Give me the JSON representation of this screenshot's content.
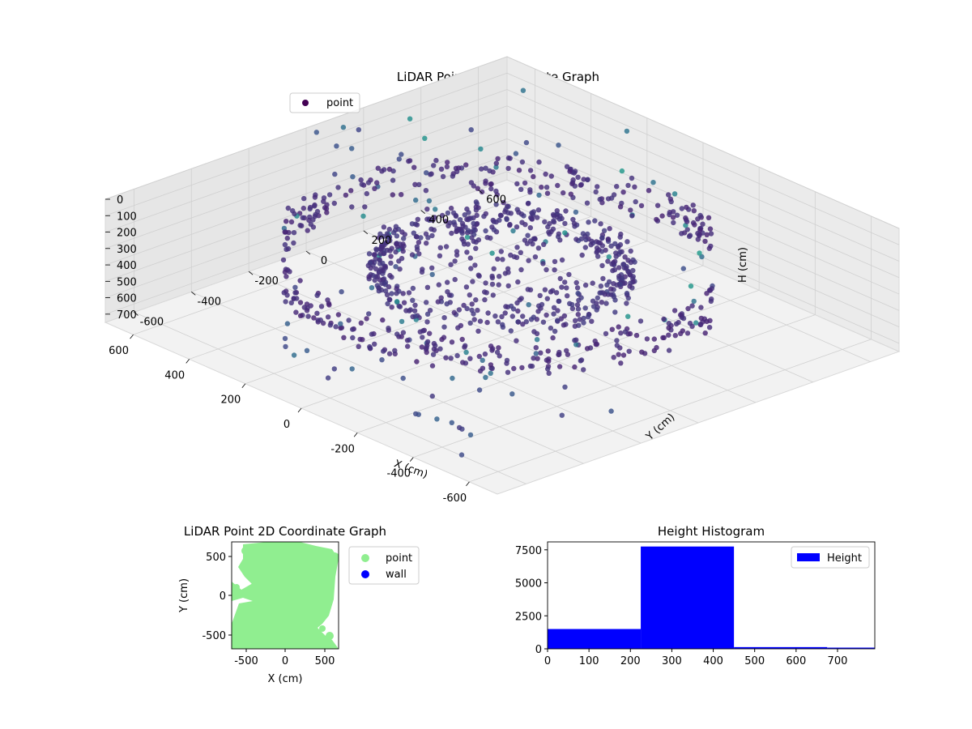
{
  "figure": {
    "background": "#ffffff"
  },
  "chart_data": [
    {
      "type": "scatter",
      "projection": "3d",
      "title": "LiDAR Point 3D Coordinate Graph",
      "xlabel": "X (cm)",
      "ylabel": "Y (cm)",
      "zlabel": "H (cm)",
      "xlim": [
        -700,
        700
      ],
      "ylim": [
        -700,
        700
      ],
      "zlim": [
        0,
        750
      ],
      "z_inverted": true,
      "xticks": [
        "-600",
        "-400",
        "-200",
        "0",
        "200",
        "400",
        "600"
      ],
      "yticks": [
        "-600",
        "-400",
        "-200",
        "0",
        "200",
        "400",
        "600"
      ],
      "zticks": [
        "0",
        "100",
        "200",
        "300",
        "400",
        "500",
        "600",
        "700"
      ],
      "colormap": "viridis",
      "legend": {
        "location": "upper-left",
        "entries": [
          {
            "label": "point",
            "color": "#440154"
          }
        ]
      },
      "structure": [
        {
          "shape": "cylinder-wall",
          "radius": 560,
          "h_range": [
            210,
            420
          ]
        },
        {
          "shape": "cylinder-wall",
          "radius": 320,
          "h_range": [
            240,
            420
          ]
        },
        {
          "shape": "sparse-ceiling",
          "h_range": [
            0,
            180
          ]
        },
        {
          "shape": "sparse-floor",
          "h_range": [
            450,
            720
          ]
        }
      ]
    },
    {
      "type": "scatter",
      "title": "LiDAR Point 2D Coordinate Graph",
      "xlabel": "X (cm)",
      "ylabel": "Y (cm)",
      "xlim": [
        -670,
        670
      ],
      "ylim": [
        -670,
        670
      ],
      "xticks": [
        "-500",
        "0",
        "500"
      ],
      "yticks": [
        "-500",
        "0",
        "500"
      ],
      "legend": {
        "location": "outside-right",
        "entries": [
          {
            "label": "point",
            "color": "#90ee90"
          },
          {
            "label": "wall",
            "color": "#0000ff"
          }
        ]
      }
    },
    {
      "type": "bar",
      "histogram": true,
      "title": "Height Histogram",
      "bins": [
        {
          "x0": 0,
          "x1": 225,
          "count": 1500
        },
        {
          "x0": 225,
          "x1": 450,
          "count": 7750
        },
        {
          "x0": 450,
          "x1": 675,
          "count": 130
        },
        {
          "x0": 675,
          "x1": 790,
          "count": 90
        }
      ],
      "xlim": [
        0,
        790
      ],
      "ylim": [
        0,
        8100
      ],
      "xticks": [
        "0",
        "100",
        "200",
        "300",
        "400",
        "500",
        "600",
        "700"
      ],
      "yticks": [
        "0",
        "2500",
        "5000",
        "7500"
      ],
      "bar_color": "#0000ff",
      "legend": {
        "location": "upper-right",
        "entries": [
          {
            "label": "Height",
            "color": "#0000ff"
          }
        ]
      }
    }
  ]
}
